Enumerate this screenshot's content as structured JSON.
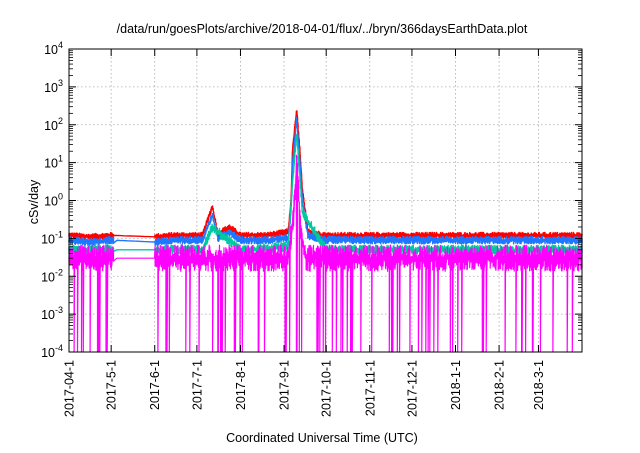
{
  "chart_data": {
    "type": "line",
    "title": "/data/run/goesPlots/archive/2018-04-01/flux/../bryn/366daysEarthData.plot",
    "xlabel": "Coordinated Universal Time (UTC)",
    "ylabel": "cSv/day",
    "y_scale": "log",
    "ylim": [
      0.0001,
      10000
    ],
    "xlim": [
      "2017-04-01",
      "2018-04-01"
    ],
    "y_ticks": [
      {
        "value": 0.0001,
        "base": "10",
        "exp": "-4"
      },
      {
        "value": 0.001,
        "base": "10",
        "exp": "-3"
      },
      {
        "value": 0.01,
        "base": "10",
        "exp": "-2"
      },
      {
        "value": 0.1,
        "base": "10",
        "exp": "-1"
      },
      {
        "value": 1,
        "base": "10",
        "exp": "0"
      },
      {
        "value": 10,
        "base": "10",
        "exp": "1"
      },
      {
        "value": 100,
        "base": "10",
        "exp": "2"
      },
      {
        "value": 1000,
        "base": "10",
        "exp": "3"
      },
      {
        "value": 10000,
        "base": "10",
        "exp": "4"
      }
    ],
    "x_ticks": [
      {
        "date": "2017-04-01",
        "label": "2017-04-1"
      },
      {
        "date": "2017-05-01",
        "label": "2017-5-1"
      },
      {
        "date": "2017-06-01",
        "label": "2017-6-1"
      },
      {
        "date": "2017-07-01",
        "label": "2017-7-1"
      },
      {
        "date": "2017-08-01",
        "label": "2017-8-1"
      },
      {
        "date": "2017-09-01",
        "label": "2017-9-1"
      },
      {
        "date": "2017-10-01",
        "label": "2017-10-1"
      },
      {
        "date": "2017-11-01",
        "label": "2017-11-1"
      },
      {
        "date": "2017-12-01",
        "label": "2017-12-1"
      },
      {
        "date": "2018-01-01",
        "label": "2018-1-1"
      },
      {
        "date": "2018-02-01",
        "label": "2018-2-1"
      },
      {
        "date": "2018-03-01",
        "label": "2018-3-1"
      }
    ],
    "grid": true,
    "legend": "none",
    "gaps": [
      [
        "2017-05-03",
        "2017-06-01"
      ]
    ],
    "series": [
      {
        "color": "#ff0000",
        "values": [
          [
            "2017-04-01",
            0.12
          ],
          [
            "2017-04-15",
            0.11
          ],
          [
            "2017-05-02",
            0.12
          ],
          [
            "2017-06-01",
            0.11
          ],
          [
            "2017-06-15",
            0.12
          ],
          [
            "2017-07-05",
            0.12
          ],
          [
            "2017-07-12",
            0.7
          ],
          [
            "2017-07-16",
            0.13
          ],
          [
            "2017-07-24",
            0.2
          ],
          [
            "2017-08-01",
            0.12
          ],
          [
            "2017-08-20",
            0.12
          ],
          [
            "2017-09-04",
            0.15
          ],
          [
            "2017-09-06",
            1.0
          ],
          [
            "2017-09-07",
            20
          ],
          [
            "2017-09-10",
            250
          ],
          [
            "2017-09-12",
            30
          ],
          [
            "2017-09-14",
            2
          ],
          [
            "2017-09-18",
            0.15
          ],
          [
            "2017-10-01",
            0.12
          ],
          [
            "2017-11-01",
            0.12
          ],
          [
            "2017-12-01",
            0.12
          ],
          [
            "2018-01-01",
            0.12
          ],
          [
            "2018-02-01",
            0.12
          ],
          [
            "2018-03-01",
            0.12
          ],
          [
            "2018-04-01",
            0.12
          ]
        ]
      },
      {
        "color": "#1f77ff",
        "values": [
          [
            "2017-04-01",
            0.09
          ],
          [
            "2017-04-15",
            0.08
          ],
          [
            "2017-05-02",
            0.09
          ],
          [
            "2017-06-01",
            0.08
          ],
          [
            "2017-06-15",
            0.09
          ],
          [
            "2017-07-05",
            0.09
          ],
          [
            "2017-07-12",
            0.4
          ],
          [
            "2017-07-16",
            0.1
          ],
          [
            "2017-07-24",
            0.15
          ],
          [
            "2017-08-01",
            0.09
          ],
          [
            "2017-08-20",
            0.09
          ],
          [
            "2017-09-04",
            0.1
          ],
          [
            "2017-09-06",
            0.5
          ],
          [
            "2017-09-07",
            8
          ],
          [
            "2017-09-10",
            150
          ],
          [
            "2017-09-12",
            15
          ],
          [
            "2017-09-14",
            1
          ],
          [
            "2017-09-18",
            0.12
          ],
          [
            "2017-10-01",
            0.09
          ],
          [
            "2017-11-01",
            0.09
          ],
          [
            "2017-12-01",
            0.09
          ],
          [
            "2018-01-01",
            0.09
          ],
          [
            "2018-02-01",
            0.09
          ],
          [
            "2018-03-01",
            0.09
          ],
          [
            "2018-04-01",
            0.09
          ]
        ]
      },
      {
        "color": "#00c8a0",
        "values": [
          [
            "2017-04-01",
            0.05
          ],
          [
            "2017-05-02",
            0.05
          ],
          [
            "2017-06-01",
            0.05
          ],
          [
            "2017-07-05",
            0.05
          ],
          [
            "2017-07-12",
            0.2
          ],
          [
            "2017-08-01",
            0.05
          ],
          [
            "2017-09-04",
            0.06
          ],
          [
            "2017-09-07",
            3
          ],
          [
            "2017-09-10",
            60
          ],
          [
            "2017-09-14",
            0.5
          ],
          [
            "2017-10-01",
            0.05
          ],
          [
            "2017-12-01",
            0.05
          ],
          [
            "2018-02-01",
            0.05
          ],
          [
            "2018-04-01",
            0.05
          ]
        ]
      },
      {
        "color": "#ff00ff",
        "values": [
          [
            "2017-04-01",
            0.03
          ],
          [
            "2017-05-02",
            0.03
          ],
          [
            "2017-06-01",
            0.03
          ],
          [
            "2017-07-05",
            0.03
          ],
          [
            "2017-08-01",
            0.03
          ],
          [
            "2017-09-04",
            0.03
          ],
          [
            "2017-09-08",
            0.5
          ],
          [
            "2017-09-10",
            10
          ],
          [
            "2017-09-13",
            0.2
          ],
          [
            "2017-09-16",
            0.03
          ],
          [
            "2017-10-01",
            0.03
          ],
          [
            "2017-12-01",
            0.03
          ],
          [
            "2018-02-01",
            0.03
          ],
          [
            "2018-04-01",
            0.03
          ]
        ]
      }
    ]
  }
}
